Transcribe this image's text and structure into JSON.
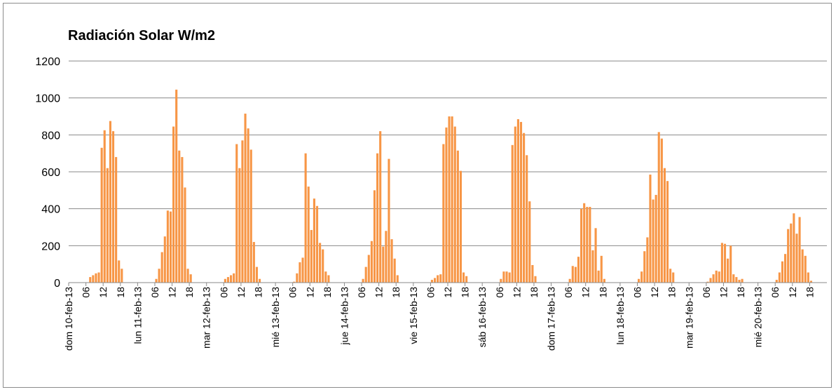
{
  "chart_data": {
    "type": "bar",
    "title": "Radiación Solar W/m2",
    "xlabel": "",
    "ylabel": "",
    "ylim": [
      0,
      1200
    ],
    "yticks": [
      0,
      200,
      400,
      600,
      800,
      1000,
      1200
    ],
    "grid": true,
    "legend": "none",
    "color": "#F79646",
    "x_tick_labels": [
      "dom 10-feb-13",
      "06",
      "12",
      "18",
      "lun 11-feb-13",
      "06",
      "12",
      "18",
      "mar 12-feb-13",
      "06",
      "12",
      "18",
      "mié 13-feb-13",
      "06",
      "12",
      "18",
      "jue 14-feb-13",
      "06",
      "12",
      "18",
      "vie 15-feb-13",
      "06",
      "12",
      "18",
      "sáb 16-feb-13",
      "06",
      "12",
      "18",
      "dom 17-feb-13",
      "06",
      "12",
      "18",
      "lun 18-feb-13",
      "06",
      "12",
      "18",
      "mar 19-feb-13",
      "06",
      "12",
      "18",
      "mié 20-feb-13",
      "06",
      "12",
      "18"
    ],
    "series": [
      {
        "values": [
          0,
          0,
          0,
          0,
          0,
          0,
          0,
          30,
          40,
          50,
          55,
          730,
          825,
          620,
          875,
          820,
          680,
          120,
          75,
          0,
          0,
          0,
          0,
          0,
          0,
          0,
          0,
          0,
          0,
          0,
          20,
          75,
          165,
          250,
          390,
          385,
          845,
          1045,
          715,
          680,
          515,
          75,
          45,
          0,
          0,
          0,
          0,
          0,
          0,
          0,
          0,
          0,
          0,
          0,
          20,
          30,
          40,
          50,
          750,
          620,
          770,
          915,
          835,
          720,
          220,
          85,
          20,
          0,
          0,
          0,
          0,
          0,
          0,
          0,
          0,
          0,
          0,
          0,
          5,
          50,
          110,
          135,
          700,
          520,
          285,
          455,
          415,
          215,
          180,
          60,
          40,
          0,
          0,
          0,
          0,
          0,
          0,
          0,
          0,
          0,
          0,
          0,
          20,
          85,
          150,
          225,
          500,
          700,
          820,
          195,
          280,
          670,
          235,
          130,
          40,
          0,
          0,
          0,
          0,
          0,
          0,
          0,
          0,
          0,
          0,
          0,
          15,
          25,
          40,
          45,
          750,
          840,
          900,
          900,
          845,
          715,
          605,
          55,
          35,
          0,
          0,
          0,
          0,
          0,
          0,
          0,
          0,
          0,
          0,
          0,
          20,
          60,
          60,
          55,
          745,
          845,
          885,
          870,
          810,
          690,
          440,
          95,
          35,
          0,
          0,
          0,
          0,
          0,
          0,
          0,
          0,
          0,
          0,
          0,
          20,
          90,
          85,
          140,
          400,
          430,
          410,
          410,
          175,
          295,
          65,
          145,
          20,
          0,
          0,
          0,
          0,
          0,
          0,
          0,
          0,
          0,
          0,
          0,
          20,
          60,
          170,
          245,
          585,
          450,
          475,
          815,
          780,
          620,
          550,
          75,
          55,
          0,
          0,
          0,
          0,
          0,
          0,
          0,
          0,
          0,
          0,
          0,
          5,
          25,
          45,
          65,
          60,
          215,
          210,
          130,
          200,
          45,
          30,
          15,
          20,
          0,
          0,
          0,
          0,
          0,
          0,
          0,
          0,
          0,
          0,
          0,
          15,
          55,
          115,
          155,
          290,
          320,
          375,
          265,
          355,
          180,
          145,
          55,
          10,
          0,
          0,
          0,
          0,
          0
        ]
      }
    ]
  }
}
